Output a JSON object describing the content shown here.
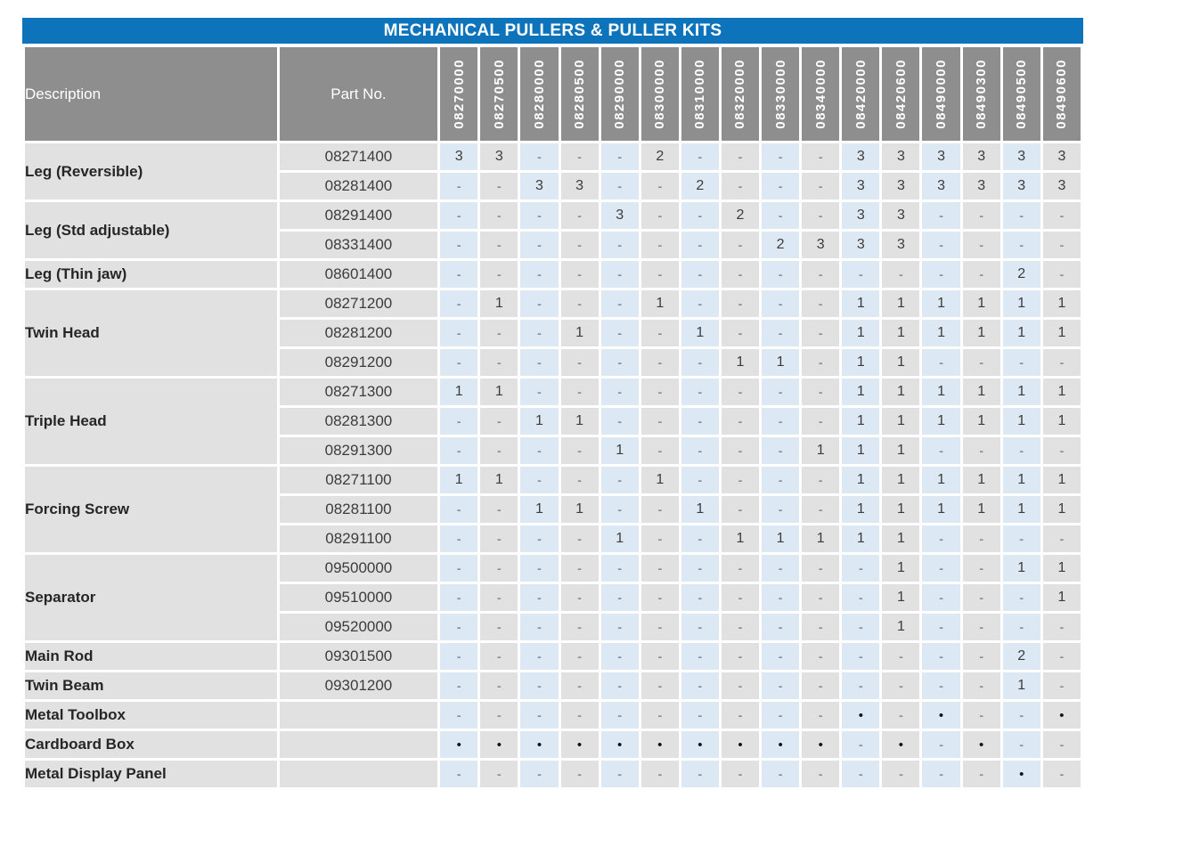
{
  "title": "MECHANICAL PULLERS & PULLER KITS",
  "columns": {
    "description_label": "Description",
    "part_no_label": "Part No.",
    "kits": [
      "08270000",
      "08270500",
      "08280000",
      "08280500",
      "08290000",
      "08300000",
      "08310000",
      "08320000",
      "08330000",
      "08340000",
      "08420000",
      "08420600",
      "08490000",
      "08490300",
      "08490500",
      "08490600"
    ]
  },
  "groups": [
    {
      "description": "Leg (Reversible)",
      "rows": [
        {
          "part_no": "08271400",
          "values": [
            "3",
            "3",
            "-",
            "-",
            "-",
            "2",
            "-",
            "-",
            "-",
            "-",
            "3",
            "3",
            "3",
            "3",
            "3",
            "3"
          ]
        },
        {
          "part_no": "08281400",
          "values": [
            "-",
            "-",
            "3",
            "3",
            "-",
            "-",
            "2",
            "-",
            "-",
            "-",
            "3",
            "3",
            "3",
            "3",
            "3",
            "3"
          ]
        }
      ]
    },
    {
      "description": "Leg (Std adjustable)",
      "rows": [
        {
          "part_no": "08291400",
          "values": [
            "-",
            "-",
            "-",
            "-",
            "3",
            "-",
            "-",
            "2",
            "-",
            "-",
            "3",
            "3",
            "-",
            "-",
            "-",
            "-"
          ]
        },
        {
          "part_no": "08331400",
          "values": [
            "-",
            "-",
            "-",
            "-",
            "-",
            "-",
            "-",
            "-",
            "2",
            "3",
            "3",
            "3",
            "-",
            "-",
            "-",
            "-"
          ]
        }
      ]
    },
    {
      "description": "Leg (Thin jaw)",
      "rows": [
        {
          "part_no": "08601400",
          "values": [
            "-",
            "-",
            "-",
            "-",
            "-",
            "-",
            "-",
            "-",
            "-",
            "-",
            "-",
            "-",
            "-",
            "-",
            "2",
            "-"
          ]
        }
      ]
    },
    {
      "description": "Twin Head",
      "rows": [
        {
          "part_no": "08271200",
          "values": [
            "-",
            "1",
            "-",
            "-",
            "-",
            "1",
            "-",
            "-",
            "-",
            "-",
            "1",
            "1",
            "1",
            "1",
            "1",
            "1"
          ]
        },
        {
          "part_no": "08281200",
          "values": [
            "-",
            "-",
            "-",
            "1",
            "-",
            "-",
            "1",
            "-",
            "-",
            "-",
            "1",
            "1",
            "1",
            "1",
            "1",
            "1"
          ]
        },
        {
          "part_no": "08291200",
          "values": [
            "-",
            "-",
            "-",
            "-",
            "-",
            "-",
            "-",
            "1",
            "1",
            "-",
            "1",
            "1",
            "-",
            "-",
            "-",
            "-"
          ]
        }
      ]
    },
    {
      "description": "Triple Head",
      "rows": [
        {
          "part_no": "08271300",
          "values": [
            "1",
            "1",
            "-",
            "-",
            "-",
            "-",
            "-",
            "-",
            "-",
            "-",
            "1",
            "1",
            "1",
            "1",
            "1",
            "1"
          ]
        },
        {
          "part_no": "08281300",
          "values": [
            "-",
            "-",
            "1",
            "1",
            "-",
            "-",
            "-",
            "-",
            "-",
            "-",
            "1",
            "1",
            "1",
            "1",
            "1",
            "1"
          ]
        },
        {
          "part_no": "08291300",
          "values": [
            "-",
            "-",
            "-",
            "-",
            "1",
            "-",
            "-",
            "-",
            "-",
            "1",
            "1",
            "1",
            "-",
            "-",
            "-",
            "-"
          ]
        }
      ]
    },
    {
      "description": "Forcing Screw",
      "rows": [
        {
          "part_no": "08271100",
          "values": [
            "1",
            "1",
            "-",
            "-",
            "-",
            "1",
            "-",
            "-",
            "-",
            "-",
            "1",
            "1",
            "1",
            "1",
            "1",
            "1"
          ]
        },
        {
          "part_no": "08281100",
          "values": [
            "-",
            "-",
            "1",
            "1",
            "-",
            "-",
            "1",
            "-",
            "-",
            "-",
            "1",
            "1",
            "1",
            "1",
            "1",
            "1"
          ]
        },
        {
          "part_no": "08291100",
          "values": [
            "-",
            "-",
            "-",
            "-",
            "1",
            "-",
            "-",
            "1",
            "1",
            "1",
            "1",
            "1",
            "-",
            "-",
            "-",
            "-"
          ]
        }
      ]
    },
    {
      "description": "Separator",
      "rows": [
        {
          "part_no": "09500000",
          "values": [
            "-",
            "-",
            "-",
            "-",
            "-",
            "-",
            "-",
            "-",
            "-",
            "-",
            "-",
            "1",
            "-",
            "-",
            "1",
            "1"
          ]
        },
        {
          "part_no": "09510000",
          "values": [
            "-",
            "-",
            "-",
            "-",
            "-",
            "-",
            "-",
            "-",
            "-",
            "-",
            "-",
            "1",
            "-",
            "-",
            "-",
            "1"
          ]
        },
        {
          "part_no": "09520000",
          "values": [
            "-",
            "-",
            "-",
            "-",
            "-",
            "-",
            "-",
            "-",
            "-",
            "-",
            "-",
            "1",
            "-",
            "-",
            "-",
            "-"
          ]
        }
      ]
    },
    {
      "description": "Main Rod",
      "rows": [
        {
          "part_no": "09301500",
          "values": [
            "-",
            "-",
            "-",
            "-",
            "-",
            "-",
            "-",
            "-",
            "-",
            "-",
            "-",
            "-",
            "-",
            "-",
            "2",
            "-"
          ]
        }
      ]
    },
    {
      "description": "Twin Beam",
      "rows": [
        {
          "part_no": "09301200",
          "values": [
            "-",
            "-",
            "-",
            "-",
            "-",
            "-",
            "-",
            "-",
            "-",
            "-",
            "-",
            "-",
            "-",
            "-",
            "1",
            "-"
          ]
        }
      ]
    },
    {
      "description": "Metal Toolbox",
      "rows": [
        {
          "part_no": "",
          "values": [
            "-",
            "-",
            "-",
            "-",
            "-",
            "-",
            "-",
            "-",
            "-",
            "-",
            "•",
            "-",
            "•",
            "-",
            "-",
            "•"
          ]
        }
      ]
    },
    {
      "description": "Cardboard Box",
      "rows": [
        {
          "part_no": "",
          "values": [
            "•",
            "•",
            "•",
            "•",
            "•",
            "•",
            "•",
            "•",
            "•",
            "•",
            "-",
            "•",
            "-",
            "•",
            "-",
            "-"
          ]
        }
      ]
    },
    {
      "description": "Metal Display Panel",
      "rows": [
        {
          "part_no": "",
          "values": [
            "-",
            "-",
            "-",
            "-",
            "-",
            "-",
            "-",
            "-",
            "-",
            "-",
            "-",
            "-",
            "-",
            "-",
            "•",
            "-"
          ]
        }
      ]
    }
  ],
  "colors": {
    "title_bar": "#0d74bc",
    "header_gray": "#8e8e8e",
    "cell_gray": "#e1e1e1",
    "cell_blue": "#dce8f3",
    "text_dark": "#3c3c3c",
    "dash_gray": "#84919b",
    "dot_black": "#141414"
  }
}
